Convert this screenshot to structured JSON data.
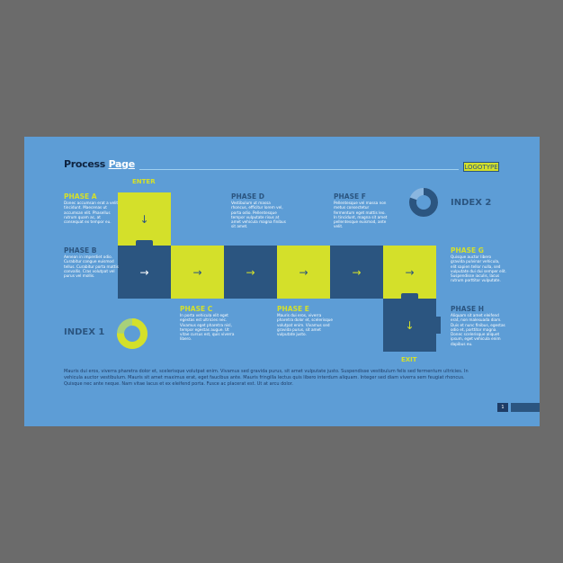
{
  "title": {
    "part1": "Process ",
    "part2": "Page"
  },
  "logotype": "LOGOTYPE",
  "enter_label": "ENTER",
  "exit_label": "EXIT",
  "phases": {
    "a": {
      "title": "PHASE A",
      "text": "Donec accumsan erat a velit tincidunt. Maecenas ut accumsan elit. Phasellus rutrum quam ac, at consequat ex tempor eu."
    },
    "b": {
      "title": "PHASE B",
      "text": "Aenean in imperdiet odio. Curabitur congue euismod tellus. Curabitur porta mattis convallis. Cras volutpat vel purus vel mollis."
    },
    "c": {
      "title": "PHASE C",
      "text": "In porta vehicula elit eget egestas est ultricies nec. Vivamus eget pharetra nisl, tempor egestas augue. Ut vitae cursus est, quis viverra libero."
    },
    "d": {
      "title": "PHASE D",
      "text": "Vestibulum ut massa rhoncus, efficitur lorem vel, porta odio. Pellentesque tempor vulputate risus at amet vehicula magna finibus sit amet."
    },
    "e": {
      "title": "PHASE E",
      "text": "Mauris dui eros, viverra pharetra dolor et, scelerisque volutpat enim. Vivamus sed gravida purus, sit amet vulputate justo."
    },
    "f": {
      "title": "PHASE F",
      "text": "Pellentesque vel massa non metus consectetur fermentum eget mattis leo. In tincidunt, magna sit amet pellentesque euismod, ante velit."
    },
    "g": {
      "title": "PHASE G",
      "text": "Quisque auctor libero gravida pulvinar vehicula, elit sapien tellor nulla, sed vulputate dui dui semper elit. Suspendisse iaculis, lacus rutrum porttitor vulputate."
    },
    "h": {
      "title": "PHASE H",
      "text": "Aliquam sit amet eleifend erat, non malesuada diam. Duis et nunc finibus, egestas odio et, porttitor magna. Donec scelerisque aliquet ipsum, eget vehicula enim dapibus eu."
    }
  },
  "index1": {
    "label": "INDEX 1",
    "fraction": 0.75,
    "colors": [
      "#d4e02a",
      "#a8d17a"
    ]
  },
  "index2": {
    "label": "INDEX 2",
    "fraction": 0.8,
    "colors": [
      "#2b5580",
      "#8ab6df"
    ]
  },
  "paragraph": "Mauris dui eros, viverra pharetra dolor et, scelerisque volutpat enim. Vivamus sed gravida purus, sit amet vulputate justo. Suspendisse vestibulum felis sed fermentum ultricies. In vehicula auctor vestibulum. Mauris sit amet maximus erat, eget faucibus ante. Mauris fringilla lectus quis libero interdum aliquam. Integer sed diam viverra sem feugiat rhoncus. Quisque nec ante neque. Nam vitae lacus et ex eleifend porta. Fusce ac placerat est. Ut at arcu dolor.",
  "page_number": "1",
  "colors": {
    "background": "#6b6b6b",
    "slide": "#5d9dd6",
    "navy": "#2b5580",
    "lime": "#d4e02a"
  }
}
